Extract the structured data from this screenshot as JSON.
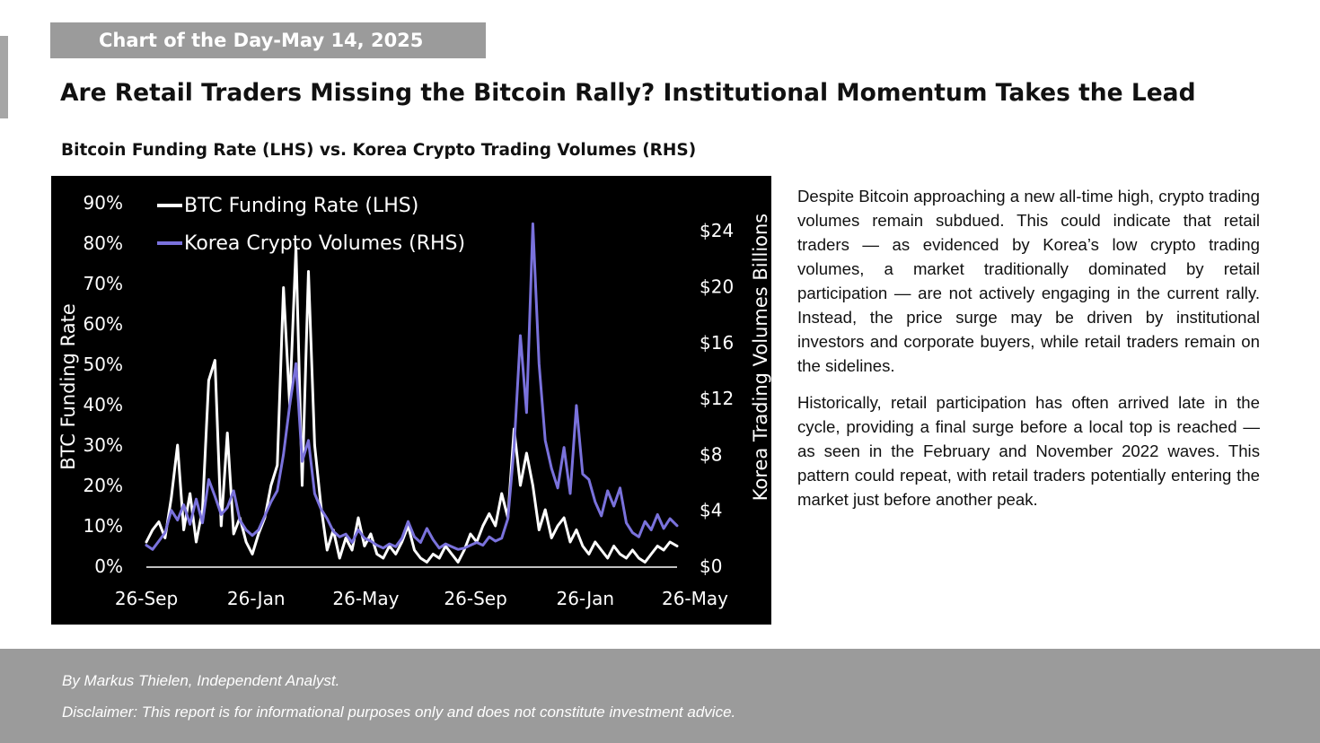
{
  "header": {
    "tag": "Chart of the Day-May 14, 2025",
    "headline": "Are Retail Traders Missing the Bitcoin Rally? Institutional Momentum Takes the Lead",
    "chart_subtitle": "Bitcoin Funding Rate (LHS) vs. Korea Crypto Trading Volumes (RHS)"
  },
  "body": {
    "paragraph1": "Despite Bitcoin approaching a new all-time high, crypto trading volumes remain subdued. This could indicate that retail traders — as evidenced by Korea’s low crypto trading volumes, a market traditionally dominated by retail participation — are not actively engaging in the current rally. Instead, the price surge may be driven by institutional investors and corporate buyers, while retail traders remain on the sidelines.",
    "paragraph2": "Historically, retail participation has often arrived late in the cycle, providing a final surge before a local top is reached — as seen in the February and November 2022 waves. This pattern could repeat, with retail traders potentially entering the market just before another peak."
  },
  "footer": {
    "author": "By Markus Thielen, Independent Analyst.",
    "disclaimer": "Disclaimer: This report is for informational purposes only and does not constitute investment advice."
  },
  "chart_data": {
    "type": "line",
    "x_tick_labels": [
      "26-Sep",
      "26-Jan",
      "26-May",
      "26-Sep",
      "26-Jan",
      "26-May"
    ],
    "x_range": [
      "2023-09-26",
      "2025-05-14"
    ],
    "ylabel_left": "BTC Funding Rate",
    "ylabel_right": "Korea Trading  Volumes Billions",
    "y_left_ticks": [
      "0%",
      "10%",
      "20%",
      "30%",
      "40%",
      "50%",
      "60%",
      "70%",
      "80%",
      "90%"
    ],
    "y_left_range": [
      0,
      90
    ],
    "y_right_ticks": [
      "$0",
      "$4",
      "$8",
      "$12",
      "$16",
      "$20",
      "$24"
    ],
    "y_right_range": [
      0,
      26
    ],
    "legend_position": "top-left",
    "colors": {
      "background": "#000000",
      "funding": "#ffffff",
      "volume": "#7a72dc"
    },
    "series": [
      {
        "name": "BTC Funding Rate (LHS)",
        "axis": "left",
        "points": [
          [
            "2023-09-26",
            6
          ],
          [
            "2023-10-03",
            9
          ],
          [
            "2023-10-10",
            11
          ],
          [
            "2023-10-17",
            7
          ],
          [
            "2023-10-24",
            17
          ],
          [
            "2023-10-31",
            30
          ],
          [
            "2023-11-07",
            9
          ],
          [
            "2023-11-14",
            18
          ],
          [
            "2023-11-21",
            6
          ],
          [
            "2023-11-28",
            14
          ],
          [
            "2023-12-05",
            46
          ],
          [
            "2023-12-12",
            51
          ],
          [
            "2023-12-19",
            10
          ],
          [
            "2023-12-26",
            33
          ],
          [
            "2024-01-02",
            8
          ],
          [
            "2024-01-09",
            12
          ],
          [
            "2024-01-16",
            6
          ],
          [
            "2024-01-23",
            3
          ],
          [
            "2024-01-30",
            8
          ],
          [
            "2024-02-06",
            12
          ],
          [
            "2024-02-13",
            20
          ],
          [
            "2024-02-20",
            25
          ],
          [
            "2024-02-27",
            69
          ],
          [
            "2024-03-05",
            40
          ],
          [
            "2024-03-12",
            79
          ],
          [
            "2024-03-19",
            20
          ],
          [
            "2024-03-26",
            73
          ],
          [
            "2024-04-02",
            30
          ],
          [
            "2024-04-09",
            15
          ],
          [
            "2024-04-16",
            4
          ],
          [
            "2024-04-23",
            9
          ],
          [
            "2024-04-30",
            2
          ],
          [
            "2024-05-07",
            7
          ],
          [
            "2024-05-14",
            4
          ],
          [
            "2024-05-21",
            12
          ],
          [
            "2024-05-28",
            5
          ],
          [
            "2024-06-04",
            8
          ],
          [
            "2024-06-11",
            3
          ],
          [
            "2024-06-18",
            2
          ],
          [
            "2024-06-25",
            5
          ],
          [
            "2024-07-02",
            3
          ],
          [
            "2024-07-09",
            6
          ],
          [
            "2024-07-16",
            10
          ],
          [
            "2024-07-23",
            4
          ],
          [
            "2024-07-30",
            2
          ],
          [
            "2024-08-06",
            1
          ],
          [
            "2024-08-13",
            3
          ],
          [
            "2024-08-20",
            2
          ],
          [
            "2024-08-27",
            5
          ],
          [
            "2024-09-03",
            3
          ],
          [
            "2024-09-10",
            1
          ],
          [
            "2024-09-17",
            4
          ],
          [
            "2024-09-24",
            8
          ],
          [
            "2024-10-01",
            6
          ],
          [
            "2024-10-08",
            10
          ],
          [
            "2024-10-15",
            13
          ],
          [
            "2024-10-22",
            10
          ],
          [
            "2024-10-29",
            18
          ],
          [
            "2024-11-05",
            12
          ],
          [
            "2024-11-12",
            34
          ],
          [
            "2024-11-19",
            20
          ],
          [
            "2024-11-26",
            28
          ],
          [
            "2024-12-03",
            20
          ],
          [
            "2024-12-10",
            9
          ],
          [
            "2024-12-17",
            14
          ],
          [
            "2024-12-24",
            7
          ],
          [
            "2024-12-31",
            10
          ],
          [
            "2025-01-07",
            12
          ],
          [
            "2025-01-14",
            6
          ],
          [
            "2025-01-21",
            9
          ],
          [
            "2025-01-28",
            5
          ],
          [
            "2025-02-04",
            3
          ],
          [
            "2025-02-11",
            6
          ],
          [
            "2025-02-18",
            4
          ],
          [
            "2025-02-25",
            2
          ],
          [
            "2025-03-04",
            5
          ],
          [
            "2025-03-11",
            3
          ],
          [
            "2025-03-18",
            2
          ],
          [
            "2025-03-25",
            4
          ],
          [
            "2025-04-01",
            2
          ],
          [
            "2025-04-08",
            1
          ],
          [
            "2025-04-15",
            3
          ],
          [
            "2025-04-22",
            5
          ],
          [
            "2025-04-29",
            4
          ],
          [
            "2025-05-06",
            6
          ],
          [
            "2025-05-14",
            5
          ]
        ]
      },
      {
        "name": "Korea Crypto Volumes (RHS)",
        "axis": "right",
        "points": [
          [
            "2023-09-26",
            1.5
          ],
          [
            "2023-10-03",
            1.2
          ],
          [
            "2023-10-10",
            1.8
          ],
          [
            "2023-10-17",
            2.4
          ],
          [
            "2023-10-24",
            4.0
          ],
          [
            "2023-10-31",
            3.3
          ],
          [
            "2023-11-07",
            4.4
          ],
          [
            "2023-11-14",
            3.0
          ],
          [
            "2023-11-21",
            4.8
          ],
          [
            "2023-11-28",
            3.1
          ],
          [
            "2023-12-05",
            6.2
          ],
          [
            "2023-12-12",
            5.0
          ],
          [
            "2023-12-19",
            3.7
          ],
          [
            "2023-12-26",
            4.2
          ],
          [
            "2024-01-02",
            5.4
          ],
          [
            "2024-01-09",
            3.3
          ],
          [
            "2024-01-16",
            2.6
          ],
          [
            "2024-01-23",
            2.2
          ],
          [
            "2024-01-30",
            2.6
          ],
          [
            "2024-02-06",
            3.6
          ],
          [
            "2024-02-13",
            4.6
          ],
          [
            "2024-02-20",
            5.4
          ],
          [
            "2024-02-27",
            8.0
          ],
          [
            "2024-03-05",
            11.5
          ],
          [
            "2024-03-12",
            14.5
          ],
          [
            "2024-03-19",
            7.5
          ],
          [
            "2024-03-26",
            9.0
          ],
          [
            "2024-04-02",
            5.2
          ],
          [
            "2024-04-09",
            4.1
          ],
          [
            "2024-04-16",
            3.4
          ],
          [
            "2024-04-23",
            2.5
          ],
          [
            "2024-04-30",
            2.1
          ],
          [
            "2024-05-07",
            2.3
          ],
          [
            "2024-05-14",
            1.7
          ],
          [
            "2024-05-21",
            2.6
          ],
          [
            "2024-05-28",
            2.0
          ],
          [
            "2024-06-04",
            1.8
          ],
          [
            "2024-06-11",
            1.5
          ],
          [
            "2024-06-18",
            1.3
          ],
          [
            "2024-06-25",
            1.6
          ],
          [
            "2024-07-02",
            1.4
          ],
          [
            "2024-07-09",
            2.0
          ],
          [
            "2024-07-16",
            3.2
          ],
          [
            "2024-07-23",
            2.1
          ],
          [
            "2024-07-30",
            1.7
          ],
          [
            "2024-08-06",
            2.7
          ],
          [
            "2024-08-13",
            1.9
          ],
          [
            "2024-08-20",
            1.3
          ],
          [
            "2024-08-27",
            1.6
          ],
          [
            "2024-09-03",
            1.4
          ],
          [
            "2024-09-10",
            1.2
          ],
          [
            "2024-09-17",
            1.3
          ],
          [
            "2024-09-24",
            1.5
          ],
          [
            "2024-10-01",
            1.7
          ],
          [
            "2024-10-08",
            1.5
          ],
          [
            "2024-10-15",
            2.1
          ],
          [
            "2024-10-22",
            1.8
          ],
          [
            "2024-10-29",
            2.0
          ],
          [
            "2024-11-05",
            3.4
          ],
          [
            "2024-11-12",
            8.5
          ],
          [
            "2024-11-19",
            16.5
          ],
          [
            "2024-11-26",
            11.0
          ],
          [
            "2024-12-03",
            24.5
          ],
          [
            "2024-12-10",
            14.5
          ],
          [
            "2024-12-17",
            9.0
          ],
          [
            "2024-12-24",
            7.0
          ],
          [
            "2024-12-31",
            5.6
          ],
          [
            "2025-01-07",
            8.5
          ],
          [
            "2025-01-14",
            5.2
          ],
          [
            "2025-01-21",
            11.5
          ],
          [
            "2025-01-28",
            6.6
          ],
          [
            "2025-02-04",
            6.2
          ],
          [
            "2025-02-11",
            4.6
          ],
          [
            "2025-02-18",
            3.6
          ],
          [
            "2025-02-25",
            5.4
          ],
          [
            "2025-03-04",
            4.3
          ],
          [
            "2025-03-11",
            5.6
          ],
          [
            "2025-03-18",
            3.1
          ],
          [
            "2025-03-25",
            2.4
          ],
          [
            "2025-04-01",
            2.1
          ],
          [
            "2025-04-08",
            3.2
          ],
          [
            "2025-04-15",
            2.6
          ],
          [
            "2025-04-22",
            3.7
          ],
          [
            "2025-04-29",
            2.7
          ],
          [
            "2025-05-06",
            3.4
          ],
          [
            "2025-05-14",
            2.9
          ]
        ]
      }
    ]
  }
}
